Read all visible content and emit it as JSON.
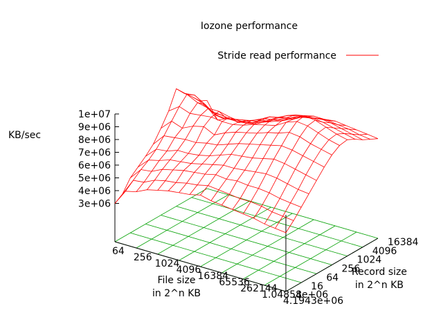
{
  "chart_data": {
    "type": "surface-3d",
    "title": "Iozone performance",
    "legend": {
      "label": "Stride read performance",
      "placement": "top-right"
    },
    "zlabel": "KB/sec",
    "xlabel": [
      "File size",
      "in 2^n KB"
    ],
    "ylabel": [
      "Record size",
      "in 2^n KB"
    ],
    "x_ticks": [
      "64",
      "256",
      "1024",
      "4096",
      "16384",
      "65536",
      "262144",
      "1.04858e+06",
      "4.1943e+06"
    ],
    "y_ticks": [
      "4",
      "16",
      "64",
      "256",
      "1024",
      "4096",
      "16384"
    ],
    "z_ticks": [
      "3e+06",
      "4e+06",
      "5e+06",
      "6e+06",
      "7e+06",
      "8e+06",
      "9e+06",
      "1e+07"
    ],
    "zlim": [
      0,
      10000000
    ],
    "grid": true,
    "series_color": "#ff0000",
    "grid_color": "#00a000",
    "axis_color": "#000000",
    "base_log2_kb": 2,
    "series": [
      {
        "name": "Stride read performance",
        "x_log2_kb": [
          6,
          7,
          8,
          9,
          10,
          11,
          12,
          13,
          14,
          15,
          16,
          17,
          18,
          19,
          20,
          21,
          22
        ],
        "y_log2_kb": [
          2,
          3,
          4,
          5,
          6,
          7,
          8,
          9,
          10,
          11,
          12,
          13,
          14
        ],
        "z": [
          [
            3000000,
            3400000,
            4300000,
            4800000,
            5300000,
            5900000,
            6800000,
            7800000,
            9200000,
            8500000,
            7900000,
            7200000,
            6900000
          ],
          [
            4200000,
            4700000,
            5200000,
            5600000,
            6100000,
            6800000,
            7600000,
            8400000,
            9000000,
            8600000,
            7700000,
            6700000,
            5600000
          ],
          [
            4400000,
            4800000,
            5300000,
            5800000,
            6200000,
            6900000,
            7300000,
            8100000,
            8600000,
            8100000,
            7100000,
            6600000,
            6000000
          ],
          [
            4800000,
            5200000,
            5700000,
            6100000,
            6500000,
            7000000,
            7700000,
            8200000,
            8400000,
            7500000,
            6900000,
            6500000,
            5900000
          ],
          [
            5000000,
            5400000,
            5900000,
            6200000,
            6500000,
            7000000,
            7900000,
            8300000,
            8400000,
            7500000,
            7100000,
            6700000,
            6300000
          ],
          [
            5200000,
            5500000,
            6100000,
            6300000,
            6600000,
            7200000,
            7500000,
            8200000,
            8200000,
            7500000,
            7100000,
            6700000,
            6600000
          ],
          [
            5300000,
            5700000,
            6200000,
            6500000,
            6800000,
            7300000,
            7900000,
            8200000,
            8100000,
            7600000,
            7200000,
            7000000,
            6700000
          ],
          [
            5400000,
            5800000,
            6300000,
            6700000,
            7100000,
            7600000,
            8200000,
            8400000,
            8400000,
            8000000,
            7700000,
            7400000,
            7000000
          ],
          [
            5600000,
            6000000,
            6500000,
            6900000,
            7400000,
            7900000,
            8400000,
            8700000,
            8800000,
            8600000,
            8200000,
            7800000,
            7400000
          ],
          [
            5400000,
            5900000,
            6400000,
            6900000,
            7500000,
            8100000,
            8600000,
            8900000,
            9000000,
            8800000,
            8600000,
            8300000,
            7900000
          ],
          [
            5300000,
            5800000,
            6500000,
            7000000,
            7600000,
            8300000,
            8900000,
            9100000,
            9200000,
            9000000,
            8800000,
            8400000,
            8100000
          ],
          [
            5200000,
            5700000,
            6400000,
            7100000,
            7800000,
            8500000,
            9100000,
            9600000,
            9500000,
            9300000,
            8900000,
            8500000,
            8100000
          ],
          [
            5100000,
            5700000,
            6400000,
            7200000,
            8000000,
            8700000,
            9400000,
            9900000,
            10000000,
            9500000,
            9100000,
            8600000,
            8200000
          ],
          [
            5000000,
            5600000,
            6300000,
            7100000,
            7900000,
            8600000,
            9300000,
            9800000,
            9900000,
            9400000,
            9000000,
            8500000,
            8100000
          ],
          [
            4800000,
            5400000,
            6100000,
            6900000,
            7700000,
            8400000,
            9000000,
            9500000,
            9600000,
            9200000,
            8800000,
            8400000,
            8000000
          ],
          [
            4700000,
            5300000,
            6000000,
            6700000,
            7500000,
            8200000,
            8800000,
            9200000,
            9300000,
            9000000,
            8600000,
            8200000,
            7900000
          ],
          [
            4600000,
            5200000,
            5900000,
            6600000,
            7300000,
            8000000,
            8600000,
            9000000,
            9100000,
            8800000,
            8400000,
            8100000,
            7800000
          ]
        ]
      }
    ]
  }
}
